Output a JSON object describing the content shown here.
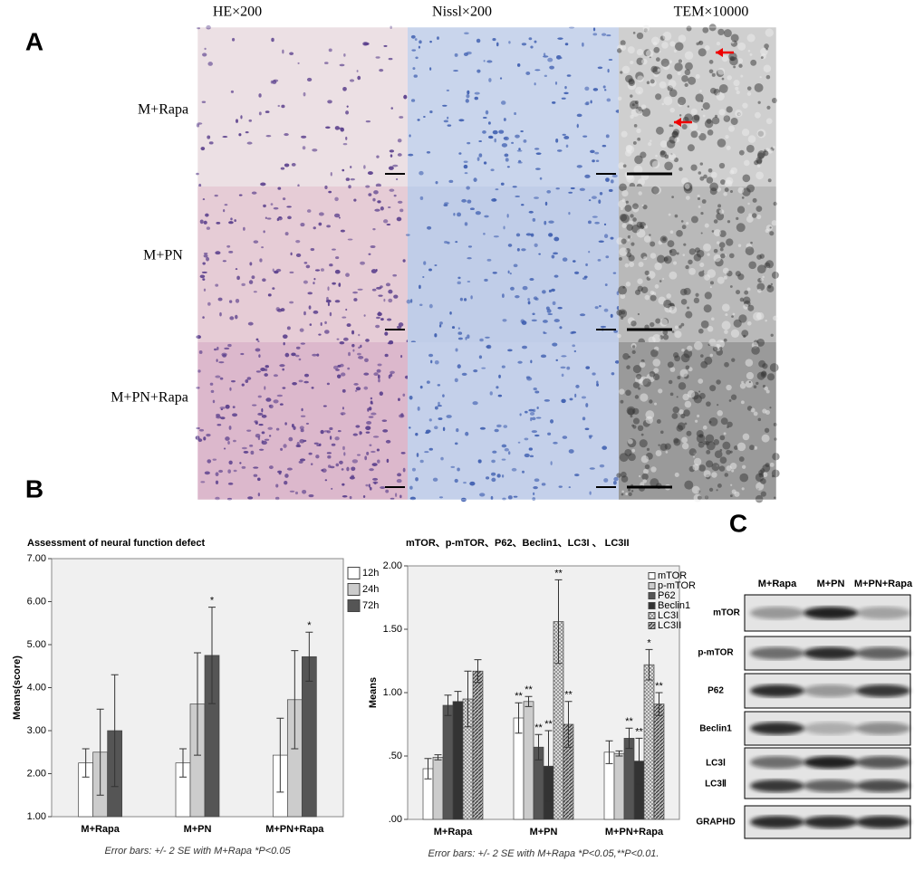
{
  "panel_labels": [
    "A",
    "B",
    "C"
  ],
  "micrograph": {
    "columns": [
      "HE×200",
      "Nissl×200",
      "TEM×10000"
    ],
    "rows": [
      "M+Rapa",
      "M+PN",
      "M+PN+Rapa"
    ]
  },
  "blot": {
    "columns": [
      "M+Rapa",
      "M+PN",
      "M+PN+Rapa"
    ],
    "rows": [
      "mTOR",
      "p-mTOR",
      "P62",
      "Beclin1",
      "LC3Ⅰ",
      "LC3Ⅱ",
      "GRAPHD"
    ]
  },
  "chart_data": [
    {
      "type": "bar",
      "title": "Assessment of neural function defect",
      "y_label": "Means(score)",
      "note": "Error bars: +/- 2 SE   with M+Rapa *P<0.05",
      "categories": [
        "M+Rapa",
        "M+PN",
        "M+PN+Rapa"
      ],
      "ylim": [
        1,
        7
      ],
      "yticks": [
        {
          "value": 1,
          "label": "1.00"
        },
        {
          "value": 2,
          "label": "2.00"
        },
        {
          "value": 3,
          "label": "3.00"
        },
        {
          "value": 4,
          "label": "4.00"
        },
        {
          "value": 5,
          "label": "5.00"
        },
        {
          "value": 6,
          "label": "6.00"
        },
        {
          "value": 7,
          "label": "7.00"
        }
      ],
      "legend": "outside-right",
      "series": [
        {
          "name": "12h",
          "color": "#ffffff",
          "values": [
            2.25,
            2.25,
            2.43
          ],
          "errors": [
            0.33,
            0.33,
            0.86
          ],
          "significance": [
            null,
            null,
            null
          ]
        },
        {
          "name": "24h",
          "color": "#cccccc",
          "values": [
            2.5,
            3.62,
            3.72
          ],
          "errors": [
            1.0,
            1.19,
            1.14
          ],
          "significance": [
            null,
            null,
            null
          ]
        },
        {
          "name": "72h",
          "color": "#555555",
          "values": [
            3.0,
            4.75,
            4.72
          ],
          "errors": [
            1.3,
            1.12,
            0.57
          ],
          "significance": [
            null,
            "*",
            "*"
          ]
        }
      ]
    },
    {
      "type": "bar",
      "title": "mTOR、p-mTOR、P62、Beclin1、LC3I 、 LC3II",
      "y_label": "Means",
      "note": "Error bars: +/- 2 SE   with M+Rapa *P<0.05,**P<0.01.",
      "categories": [
        "M+Rapa",
        "M+PN",
        "M+PN+Rapa"
      ],
      "ylim": [
        0,
        2
      ],
      "yticks": [
        {
          "value": 0,
          "label": ".00"
        },
        {
          "value": 0.5,
          "label": ".50"
        },
        {
          "value": 1,
          "label": "1.00"
        },
        {
          "value": 1.5,
          "label": "1.50"
        },
        {
          "value": 2,
          "label": "2.00"
        }
      ],
      "legend": "top-right",
      "series": [
        {
          "name": "mTOR",
          "color": "#ffffff",
          "values": [
            0.4,
            0.8,
            0.53
          ],
          "errors": [
            0.08,
            0.12,
            0.09
          ],
          "significance": [
            null,
            "**",
            null
          ]
        },
        {
          "name": "p-mTOR",
          "color": "#cccccc",
          "values": [
            0.49,
            0.93,
            0.52
          ],
          "errors": [
            0.02,
            0.04,
            0.02
          ],
          "significance": [
            null,
            "**",
            null
          ]
        },
        {
          "name": "P62",
          "color": "#555555",
          "values": [
            0.9,
            0.57,
            0.64
          ],
          "errors": [
            0.08,
            0.1,
            0.08
          ],
          "significance": [
            null,
            "**",
            "**"
          ]
        },
        {
          "name": "Beclin1",
          "color": "#333333",
          "values": [
            0.93,
            0.42,
            0.46
          ],
          "errors": [
            0.08,
            0.28,
            0.18
          ],
          "significance": [
            null,
            "**",
            "**"
          ]
        },
        {
          "name": "LC3I",
          "color": "#dddddd",
          "pattern": "crosshatch",
          "values": [
            0.95,
            1.56,
            1.22
          ],
          "errors": [
            0.22,
            0.33,
            0.12
          ],
          "significance": [
            null,
            "**",
            "*"
          ]
        },
        {
          "name": "LC3II",
          "color": "#888888",
          "pattern": "diagonal",
          "values": [
            1.17,
            0.75,
            0.91
          ],
          "errors": [
            0.09,
            0.18,
            0.09
          ],
          "significance": [
            null,
            "**",
            "**"
          ]
        }
      ]
    }
  ]
}
